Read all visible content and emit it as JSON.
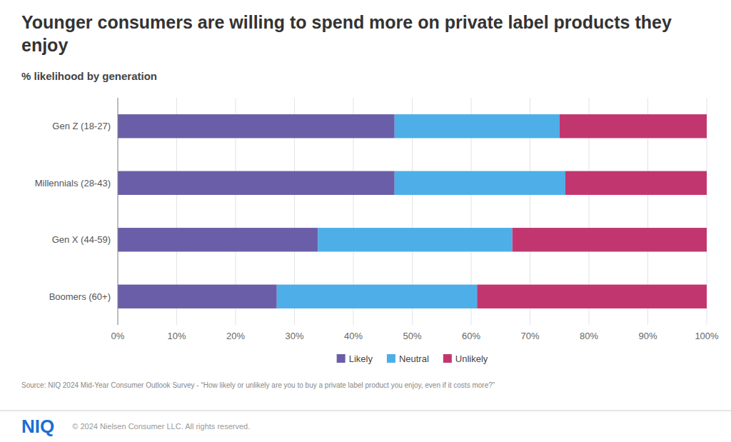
{
  "chart_data": {
    "type": "bar",
    "orientation": "horizontal",
    "stacked": true,
    "title": "Younger consumers are willing to spend more on private label products they enjoy",
    "subtitle": "% likelihood by generation",
    "categories": [
      "Gen Z (18-27)",
      "Millennials (28-43)",
      "Gen X (44-59)",
      "Boomers (60+)"
    ],
    "series": [
      {
        "name": "Likely",
        "color": "#6B5EA8",
        "values": [
          47,
          47,
          34,
          27
        ]
      },
      {
        "name": "Neutral",
        "color": "#4DAEE8",
        "values": [
          28,
          29,
          33,
          34
        ]
      },
      {
        "name": "Unlikely",
        "color": "#C2366F",
        "values": [
          25,
          24,
          33,
          39
        ]
      }
    ],
    "xlim": [
      0,
      100
    ],
    "xticks": [
      {
        "value": 0,
        "label": "0%"
      },
      {
        "value": 10,
        "label": "10%"
      },
      {
        "value": 20,
        "label": "20%"
      },
      {
        "value": 30,
        "label": "30%"
      },
      {
        "value": 40,
        "label": "40%"
      },
      {
        "value": 50,
        "label": "50%"
      },
      {
        "value": 60,
        "label": "60%"
      },
      {
        "value": 70,
        "label": "70%"
      },
      {
        "value": 80,
        "label": "80%"
      },
      {
        "value": 90,
        "label": "90%"
      },
      {
        "value": 100,
        "label": "100%"
      }
    ],
    "grid": true,
    "legend": "bottom",
    "annotations": [
      "Source: NIQ 2024 Mid-Year Consumer Outlook Survey - “How likely or unlikely are you to buy a private label product you enjoy, even if it costs more?”",
      "NIQ",
      "© 2024 Nielsen Consumer LLC. All rights reserved."
    ]
  }
}
